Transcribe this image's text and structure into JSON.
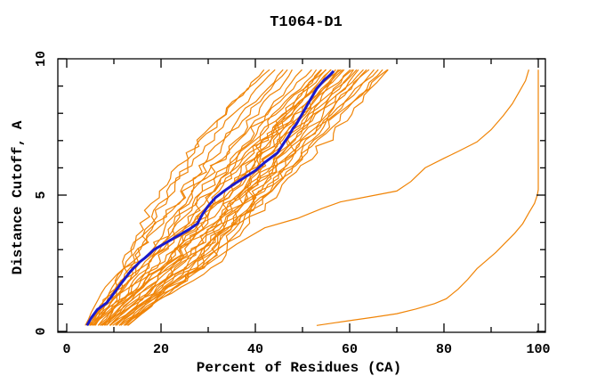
{
  "title": "T1064-D1",
  "colors": {
    "model_line": "#f08406",
    "consensus_line": "#1a1acc",
    "axis": "#000000",
    "background": "#ffffff"
  },
  "chart_data": {
    "type": "line",
    "title": "T1064-D1",
    "xlabel": "Percent of Residues (CA)",
    "ylabel": "Distance Cutoff, A",
    "xlim": [
      -1.9,
      101.5
    ],
    "ylim": [
      -0.03,
      10.0
    ],
    "grid": false,
    "legend": "none",
    "x_ticks_major": [
      0,
      20,
      40,
      60,
      80,
      100
    ],
    "x_ticks_minor": [
      10,
      30,
      50,
      70,
      90
    ],
    "y_ticks_major": [
      0,
      5,
      10
    ],
    "y_ticks_minor": [
      1,
      2,
      3,
      4,
      6,
      7,
      8,
      9
    ],
    "x_tick_labels": [
      "0",
      "20",
      "40",
      "60",
      "80",
      "100"
    ],
    "y_tick_labels": [
      "0",
      "5",
      "10"
    ],
    "series": {
      "consensus": {
        "name": "consensus-median-model",
        "color": "#1a1acc",
        "width": 3,
        "points": [
          [
            4.3,
            0.22
          ],
          [
            5.2,
            0.5
          ],
          [
            6.5,
            0.8
          ],
          [
            8.5,
            1.05
          ],
          [
            10,
            1.4
          ],
          [
            11.5,
            1.75
          ],
          [
            13.5,
            2.2
          ],
          [
            15.5,
            2.55
          ],
          [
            16.6,
            2.7
          ],
          [
            18.5,
            3.0
          ],
          [
            21,
            3.25
          ],
          [
            24,
            3.55
          ],
          [
            26,
            3.75
          ],
          [
            27.7,
            3.95
          ],
          [
            28.8,
            4.3
          ],
          [
            30,
            4.6
          ],
          [
            31.5,
            4.9
          ],
          [
            33,
            5.1
          ],
          [
            35,
            5.35
          ],
          [
            36.8,
            5.55
          ],
          [
            40,
            5.9
          ],
          [
            42,
            6.2
          ],
          [
            44.7,
            6.55
          ],
          [
            46,
            6.9
          ],
          [
            47,
            7.15
          ],
          [
            48,
            7.45
          ],
          [
            48.7,
            7.6
          ],
          [
            50,
            8.0
          ],
          [
            51.5,
            8.45
          ],
          [
            53,
            8.9
          ],
          [
            54.5,
            9.2
          ],
          [
            55.8,
            9.4
          ],
          [
            56.6,
            9.55
          ]
        ]
      },
      "outliers": [
        {
          "name": "outlier-model-reaching-100pct",
          "color": "#f08406",
          "width": 1.2,
          "points": [
            [
              53,
              0.22
            ],
            [
              57,
              0.32
            ],
            [
              61,
              0.42
            ],
            [
              65,
              0.52
            ],
            [
              70,
              0.65
            ],
            [
              74,
              0.82
            ],
            [
              78,
              1.02
            ],
            [
              80.5,
              1.2
            ],
            [
              83,
              1.55
            ],
            [
              85,
              1.9
            ],
            [
              87,
              2.3
            ],
            [
              89,
              2.6
            ],
            [
              91,
              2.9
            ],
            [
              93,
              3.25
            ],
            [
              95,
              3.6
            ],
            [
              96.7,
              3.95
            ],
            [
              98,
              4.35
            ],
            [
              99.2,
              4.7
            ],
            [
              99.8,
              5.0
            ],
            [
              100,
              5.2
            ],
            [
              100,
              9.6
            ]
          ]
        },
        {
          "name": "outlier-model-mid",
          "color": "#f08406",
          "width": 1.2,
          "points": [
            [
              13,
              0.22
            ],
            [
              17,
              0.8
            ],
            [
              21,
              1.4
            ],
            [
              26,
              2.0
            ],
            [
              31,
              2.6
            ],
            [
              36,
              3.2
            ],
            [
              42,
              3.8
            ],
            [
              49,
              4.15
            ],
            [
              54,
              4.5
            ],
            [
              58,
              4.75
            ],
            [
              64,
              4.95
            ],
            [
              70,
              5.15
            ],
            [
              73,
              5.5
            ],
            [
              76,
              6.0
            ],
            [
              80,
              6.35
            ],
            [
              83,
              6.6
            ],
            [
              87,
              6.95
            ],
            [
              90,
              7.4
            ],
            [
              92.5,
              7.9
            ],
            [
              94.5,
              8.35
            ],
            [
              96,
              8.8
            ],
            [
              97.3,
              9.2
            ],
            [
              98,
              9.6
            ]
          ]
        }
      ],
      "model_bundle": {
        "name": "server-model-curves",
        "color": "#f08406",
        "width": 1.2,
        "control_y": [
          0.22,
          2.5,
          5,
          7.5,
          9.6
        ],
        "control_x": [
          [
            3.9,
            12,
            22,
            31,
            42
          ],
          [
            4.2,
            14,
            25,
            35,
            46
          ],
          [
            4.5,
            16,
            27,
            38,
            48
          ],
          [
            4.8,
            13,
            24,
            36,
            47
          ],
          [
            5,
            17,
            29,
            40,
            50
          ],
          [
            5.3,
            15,
            26,
            39,
            52
          ],
          [
            5.6,
            18,
            30,
            42,
            53
          ],
          [
            5.9,
            20,
            32,
            44,
            54
          ],
          [
            6.2,
            16,
            28,
            41,
            55
          ],
          [
            6.5,
            21,
            33,
            45,
            56
          ],
          [
            6.8,
            19,
            31,
            44,
            57
          ],
          [
            7.1,
            22,
            35,
            47,
            57.5
          ],
          [
            7.4,
            18,
            30,
            43,
            58
          ],
          [
            7.7,
            23,
            36,
            48,
            58.5
          ],
          [
            8,
            21,
            34,
            47,
            59
          ],
          [
            8.3,
            24,
            37,
            50,
            60
          ],
          [
            8.6,
            20,
            33,
            46,
            60.5
          ],
          [
            9,
            25,
            38,
            51,
            61
          ],
          [
            9.4,
            22,
            36,
            49,
            61.5
          ],
          [
            9.8,
            26,
            40,
            52,
            62
          ],
          [
            10.2,
            24,
            38,
            51,
            63
          ],
          [
            10.6,
            27,
            41,
            53,
            63.5
          ],
          [
            11,
            25,
            39,
            52,
            64
          ],
          [
            11.5,
            28,
            42,
            55,
            65
          ],
          [
            12,
            26,
            41,
            54,
            66
          ],
          [
            12.5,
            29,
            43,
            56,
            67
          ],
          [
            13,
            27,
            42,
            55,
            68
          ],
          [
            8,
            14,
            21,
            33,
            44
          ],
          [
            6,
            12,
            19,
            30,
            43
          ],
          [
            9,
            30,
            38,
            47,
            56
          ],
          [
            7,
            28,
            36,
            45,
            55
          ],
          [
            11,
            32,
            40,
            49,
            58
          ],
          [
            5,
            22,
            34,
            44,
            54
          ],
          [
            12,
            30,
            44,
            58,
            68
          ]
        ]
      }
    }
  }
}
